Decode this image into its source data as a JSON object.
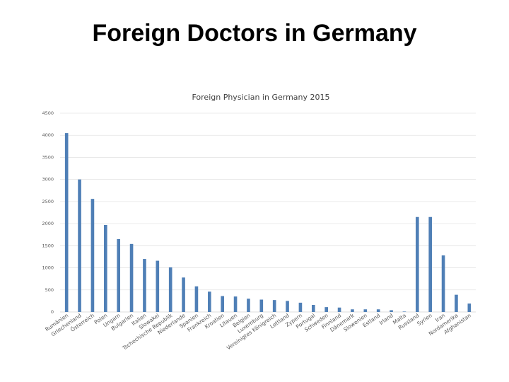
{
  "slide": {
    "title": "Foreign Doctors in Germany"
  },
  "chart_data": {
    "type": "bar",
    "title": "Foreign Physician in Germany 2015",
    "xlabel": "",
    "ylabel": "",
    "ylim": [
      0,
      4500
    ],
    "yticks": [
      0,
      500,
      1000,
      1500,
      2000,
      2500,
      3000,
      3500,
      4000,
      4500
    ],
    "grid": true,
    "bar_color": "#4f7fb6",
    "categories": [
      "Rumänien",
      "Griechenland",
      "Österreich",
      "Polen",
      "Ungarn",
      "Bulgarien",
      "Italien",
      "Slowakei",
      "Tschechische Republik",
      "Niederlande",
      "Spanien",
      "Frankreich",
      "Kroatien",
      "Litauen",
      "Belgien",
      "Luxemburg",
      "Vereinigtes Königreich",
      "Lettland",
      "Zypern",
      "Portugal",
      "Schweden",
      "Finnland",
      "Dänemark",
      "Slowenien",
      "Estland",
      "Irland",
      "Malta",
      "Russland",
      "Syrien",
      "Iran",
      "Nordamerika",
      "Afghanistan"
    ],
    "values": [
      4050,
      3000,
      2560,
      1970,
      1650,
      1540,
      1200,
      1160,
      1010,
      780,
      580,
      460,
      360,
      350,
      300,
      280,
      270,
      250,
      210,
      160,
      110,
      100,
      60,
      60,
      60,
      40,
      10,
      2150,
      2150,
      1280,
      390,
      190
    ]
  }
}
